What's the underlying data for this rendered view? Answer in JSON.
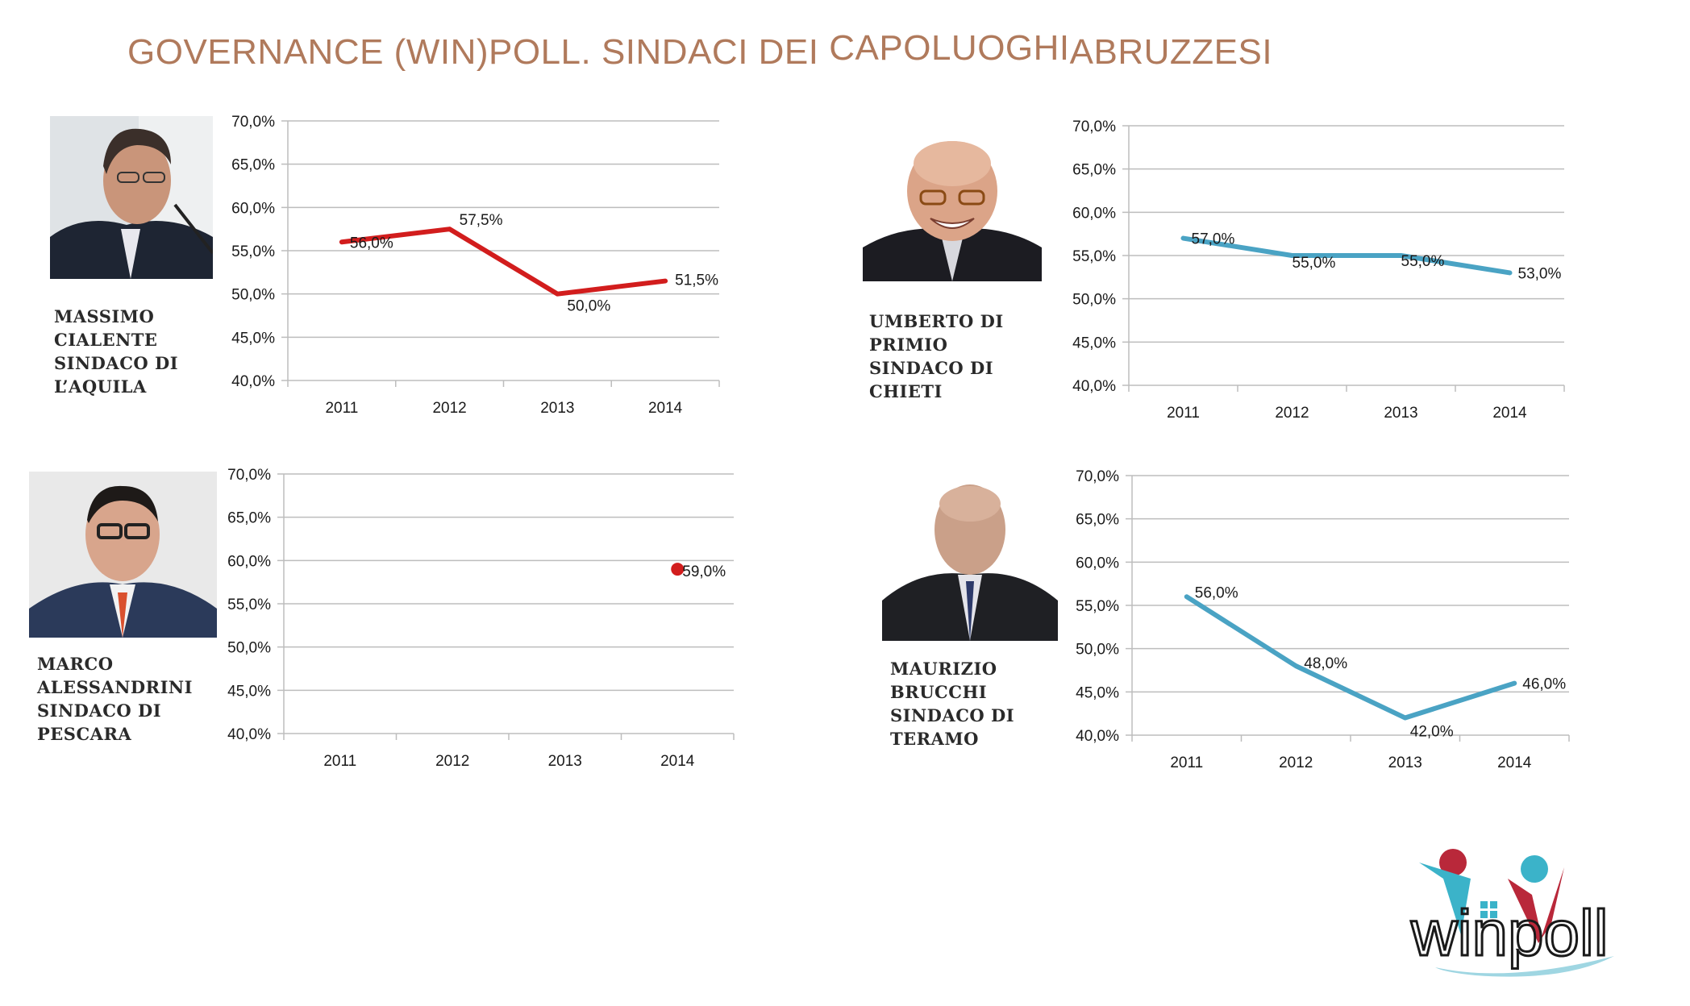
{
  "title": {
    "part1": "GOVERNANCE (WIN)POLL. SINDACI DEI",
    "part2": "CAPOLUOGHI",
    "part3": "ABRUZZESI"
  },
  "colors": {
    "title": "#b07a5c",
    "red_series": "#d21d1d",
    "blue_series": "#4aa3c4",
    "grid": "#bdbdbd"
  },
  "logo": {
    "text": "winpoll",
    "colors": [
      "#b9283a",
      "#3bb3c9",
      "#1a1a1a"
    ]
  },
  "chart_data": [
    {
      "type": "line",
      "id": "aquila",
      "caption": [
        "MASSIMO",
        "CIALENTE",
        "SINDACO DI",
        "L’AQUILA"
      ],
      "categories": [
        "2011",
        "2012",
        "2013",
        "2014"
      ],
      "values": [
        56.0,
        57.5,
        50.0,
        51.5
      ],
      "labels": [
        "56,0%",
        "57,5%",
        "50,0%",
        "51,5%"
      ],
      "yticks": [
        "70,0%",
        "65,0%",
        "60,0%",
        "55,0%",
        "50,0%",
        "45,0%",
        "40,0%"
      ],
      "ylim": [
        40,
        70
      ],
      "color": "#d21d1d",
      "grid": true
    },
    {
      "type": "line",
      "id": "chieti",
      "caption": [
        "UMBERTO DI",
        "PRIMIO",
        "SINDACO DI",
        "CHIETI"
      ],
      "categories": [
        "2011",
        "2012",
        "2013",
        "2014"
      ],
      "values": [
        57.0,
        55.0,
        55.0,
        53.0
      ],
      "labels": [
        "57,0%",
        "55,0%",
        "55,0%",
        "53,0%"
      ],
      "yticks": [
        "70,0%",
        "65,0%",
        "60,0%",
        "55,0%",
        "50,0%",
        "45,0%",
        "40,0%"
      ],
      "ylim": [
        40,
        70
      ],
      "color": "#4aa3c4",
      "grid": true
    },
    {
      "type": "scatter",
      "id": "pescara",
      "caption": [
        "MARCO",
        "ALESSANDRINI",
        "SINDACO DI",
        "PESCARA"
      ],
      "categories": [
        "2011",
        "2012",
        "2013",
        "2014"
      ],
      "values": [
        null,
        null,
        null,
        59.0
      ],
      "labels": [
        "",
        "",
        "",
        "59,0%"
      ],
      "yticks": [
        "70,0%",
        "65,0%",
        "60,0%",
        "55,0%",
        "50,0%",
        "45,0%",
        "40,0%"
      ],
      "ylim": [
        40,
        70
      ],
      "color": "#d21d1d",
      "grid": true
    },
    {
      "type": "line",
      "id": "teramo",
      "caption": [
        "MAURIZIO",
        "BRUCCHI",
        "SINDACO DI",
        "TERAMO"
      ],
      "categories": [
        "2011",
        "2012",
        "2013",
        "2014"
      ],
      "values": [
        56.0,
        48.0,
        42.0,
        46.0
      ],
      "labels": [
        "56,0%",
        "48,0%",
        "42,0%",
        "46,0%"
      ],
      "yticks": [
        "70,0%",
        "65,0%",
        "60,0%",
        "55,0%",
        "50,0%",
        "45,0%",
        "40,0%"
      ],
      "ylim": [
        40,
        70
      ],
      "color": "#4aa3c4",
      "grid": true
    }
  ]
}
